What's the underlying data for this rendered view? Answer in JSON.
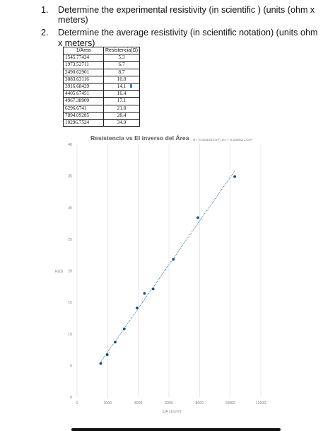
{
  "questions": [
    {
      "number": "1.",
      "text": "Determine the experimental resistivity (in scientific ) (units (ohm x meters)"
    },
    {
      "number": "2.",
      "text": "Determine the average resistivity (in scientific notation) (units ohm x meters)"
    }
  ],
  "table": {
    "headers": [
      "1/Area",
      "Resistencia(Ω)"
    ],
    "rows": [
      [
        "1545.77424",
        "5.3"
      ],
      [
        "1973.52711",
        "6.7"
      ],
      [
        "2490.62901",
        "8.7"
      ],
      [
        "3083.63116",
        "10.8"
      ],
      [
        "3916.68429",
        "14.1"
      ],
      [
        "4405.67451",
        "16.4"
      ],
      [
        "4967.38909",
        "17.1"
      ],
      [
        "6296.6741",
        "21.8"
      ],
      [
        "7894.09285",
        "28.4"
      ],
      [
        "10296.7524",
        "34.9"
      ]
    ]
  },
  "chart_data": {
    "type": "scatter",
    "title": "Resistencia vs El inverso del Área",
    "annotation": "R= (0.0034/1/cm²) 1/A + 0.2856Ω 1/cm²",
    "xlabel": "1/A (1/cm²)",
    "ylabel": "R(Ω)",
    "xlim": [
      0,
      12000
    ],
    "ylim": [
      0,
      40
    ],
    "xticks": [
      "0",
      "2000",
      "4000",
      "6000",
      "8000",
      "10000",
      "12000"
    ],
    "yticks": [
      "0",
      "5",
      "10",
      "15",
      "20",
      "25",
      "30",
      "35",
      "40"
    ],
    "grid": "vertical",
    "series": [
      {
        "x": [
          1545.77424,
          1973.52711,
          2490.62901,
          3083.63116,
          3916.68429,
          4405.67451,
          4967.38909,
          6296.6741,
          7894.09285,
          10296.7524
        ],
        "y": [
          5.3,
          6.7,
          8.7,
          10.8,
          14.1,
          16.4,
          17.1,
          21.8,
          28.4,
          34.9
        ]
      }
    ],
    "trendline": {
      "style": "dotted",
      "x": [
        1500,
        10300
      ],
      "y": [
        5.4,
        35.8
      ]
    },
    "colors": {
      "points": "#1f4e79",
      "trendline": "#2e75b6",
      "title": "#595959",
      "axis_text": "#7f7f7f",
      "grid": "#d9d9d9"
    }
  }
}
